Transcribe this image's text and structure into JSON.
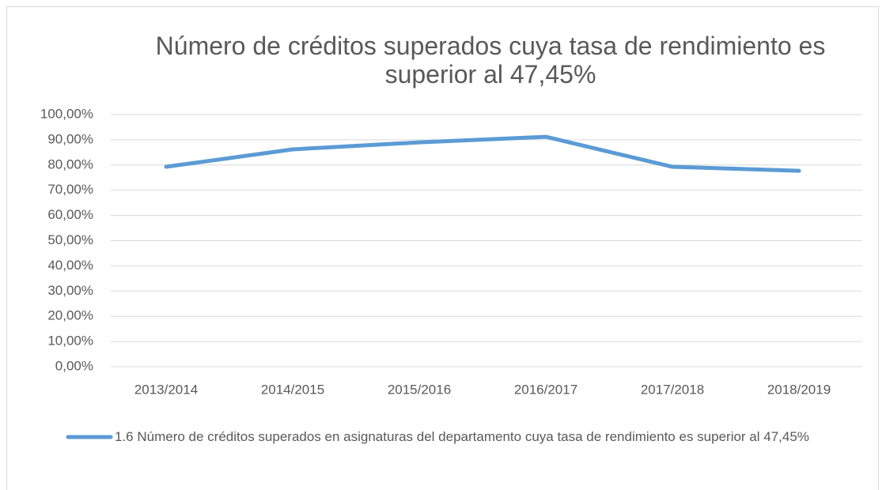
{
  "chart_data": {
    "type": "line",
    "title": "Número de créditos superados cuya tasa de rendimiento es superior al 47,45%",
    "categories": [
      "2013/2014",
      "2014/2015",
      "2015/2016",
      "2016/2017",
      "2017/2018",
      "2018/2019"
    ],
    "series": [
      {
        "name": "1.6 Número de créditos superados en asignaturas del departamento cuya tasa de rendimiento es superior al 47,45%",
        "color": "#5b9bd5",
        "values": [
          79.3,
          86.2,
          89.0,
          91.2,
          79.3,
          77.7
        ]
      }
    ],
    "ylim": [
      0,
      100
    ],
    "yticks": [
      {
        "value": 0,
        "label": "0,00%"
      },
      {
        "value": 10,
        "label": "10,00%"
      },
      {
        "value": 20,
        "label": "20,00%"
      },
      {
        "value": 30,
        "label": "30,00%"
      },
      {
        "value": 40,
        "label": "40,00%"
      },
      {
        "value": 50,
        "label": "50,00%"
      },
      {
        "value": 60,
        "label": "60,00%"
      },
      {
        "value": 70,
        "label": "70,00%"
      },
      {
        "value": 80,
        "label": "80,00%"
      },
      {
        "value": 90,
        "label": "90,00%"
      },
      {
        "value": 100,
        "label": "100,00%"
      }
    ],
    "grid": true,
    "legend": "bottom"
  }
}
